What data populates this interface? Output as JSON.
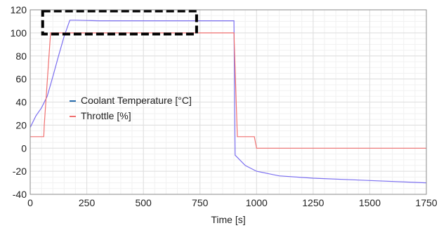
{
  "chart_data": {
    "type": "line",
    "title": "",
    "xlabel": "Time [s]",
    "ylabel": "",
    "xlim": [
      0,
      1750
    ],
    "ylim": [
      -40,
      120
    ],
    "x_ticks": [
      0,
      250,
      500,
      750,
      1000,
      1250,
      1500,
      1750
    ],
    "y_ticks": [
      -40,
      -20,
      0,
      20,
      40,
      60,
      80,
      100,
      120
    ],
    "grid": true,
    "legend_position": "center-left",
    "series": [
      {
        "name": "Coolant Temperature [°C]",
        "color": "#7b6ff0",
        "x": [
          0,
          25,
          50,
          75,
          100,
          125,
          150,
          175,
          200,
          300,
          500,
          700,
          800,
          900,
          905,
          950,
          1000,
          1100,
          1250,
          1500,
          1750
        ],
        "y": [
          18,
          28,
          35,
          45,
          62,
          80,
          97,
          111,
          111,
          110.5,
          110.5,
          110.5,
          110.5,
          110.5,
          -6,
          -15,
          -20,
          -24,
          -26,
          -28,
          -30
        ]
      },
      {
        "name": "Throttle [%]",
        "color": "#f07070",
        "x": [
          0,
          60,
          62,
          90,
          95,
          735,
          900,
          915,
          990,
          1000,
          1750
        ],
        "y": [
          10,
          10,
          20,
          100,
          100,
          100,
          100,
          10,
          10,
          0,
          0
        ]
      }
    ],
    "annotation": {
      "type": "dashed-rectangle",
      "color": "#000000",
      "x_range": [
        55,
        735
      ],
      "y_range": [
        99,
        119
      ]
    },
    "legend_swatch_color": "#2a6fb0"
  }
}
